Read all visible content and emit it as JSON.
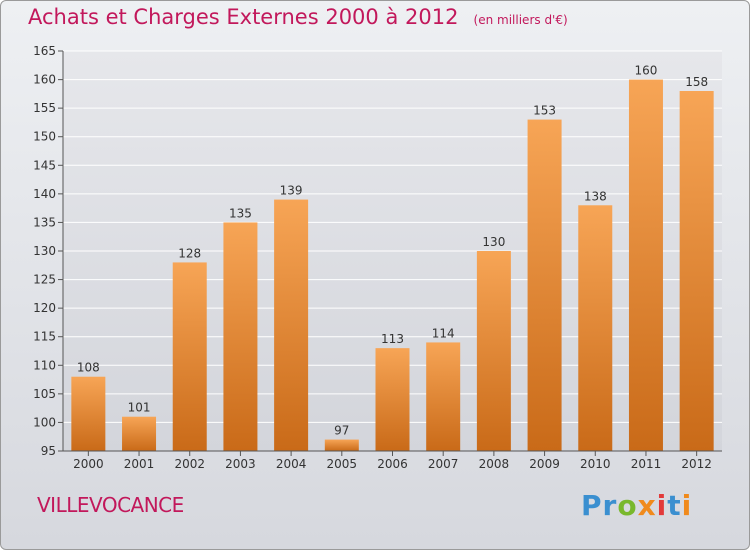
{
  "title": "Achats et Charges Externes 2000 à 2012",
  "subtitle": "(en milliers d'€)",
  "commune": "VILLEVOCANCE",
  "brand": "Proxiti",
  "colors": {
    "title": "#c2185b",
    "bar_light": "#f7a556",
    "bar_dark": "#c96a18",
    "grid": "#ffffff"
  },
  "chart_data": {
    "type": "bar",
    "categories": [
      "2000",
      "2001",
      "2002",
      "2003",
      "2004",
      "2005",
      "2006",
      "2007",
      "2008",
      "2009",
      "2010",
      "2011",
      "2012"
    ],
    "values": [
      108,
      101,
      128,
      135,
      139,
      97,
      113,
      114,
      130,
      153,
      138,
      160,
      158
    ],
    "ylim": [
      95,
      165
    ],
    "yticks": [
      95,
      100,
      105,
      110,
      115,
      120,
      125,
      130,
      135,
      140,
      145,
      150,
      155,
      160,
      165
    ],
    "grid": true,
    "data_labels": true
  }
}
